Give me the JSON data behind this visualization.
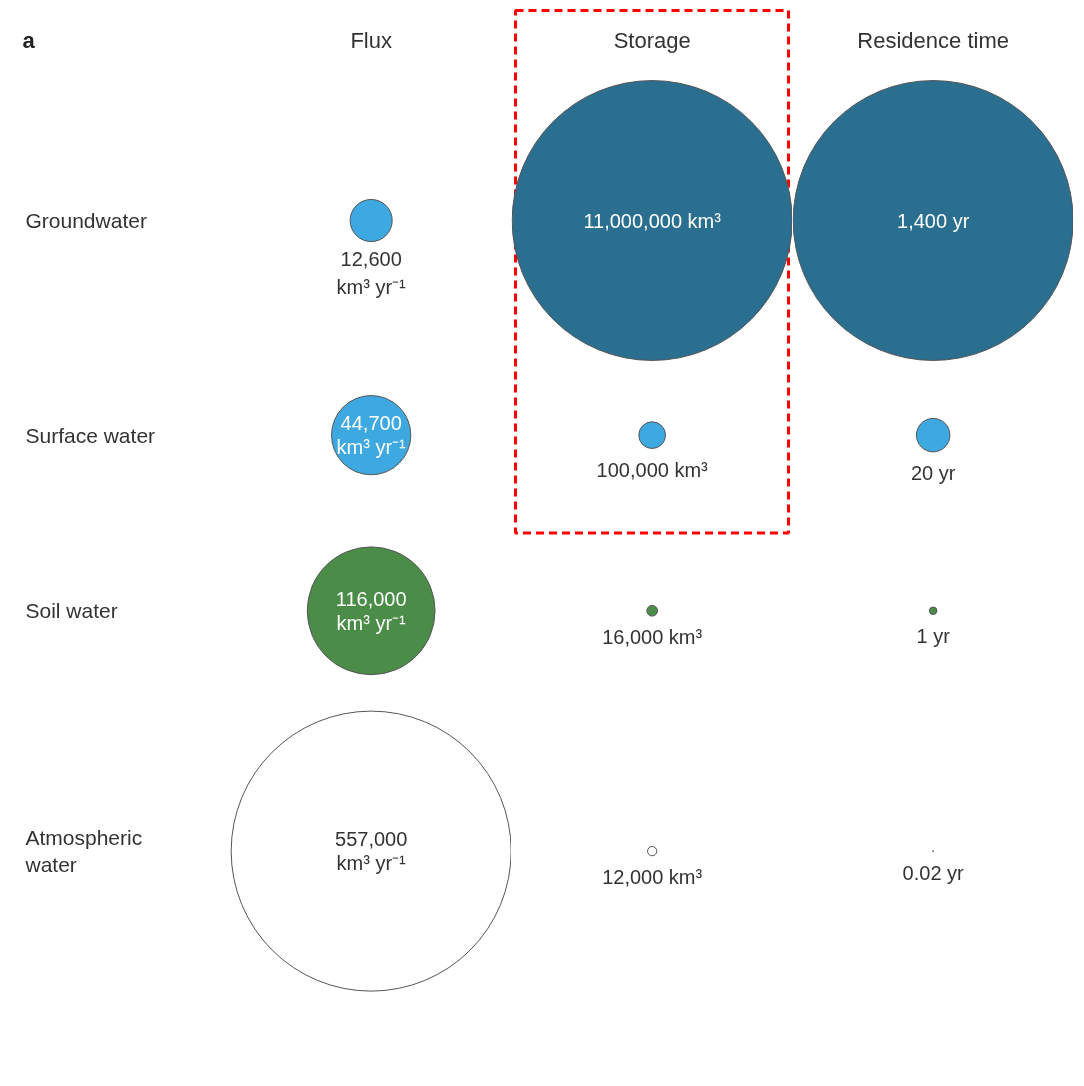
{
  "chart_data": [
    {
      "type": "other",
      "title": "Flux",
      "annotations": [
        "a"
      ],
      "categories": [
        "Groundwater",
        "Surface water",
        "Soil water",
        "Atmospheric\nwater"
      ],
      "values": [
        12600,
        44700,
        116000,
        557000
      ],
      "value_labels": [
        "12,600\nkm³ yr⁻¹",
        "44,700\nkm³ yr⁻¹",
        "116,000\nkm³ yr⁻¹",
        "557,000\nkm³ yr⁻¹"
      ],
      "colors": [
        "#3ea8e0",
        "#3ea8e0",
        "#4a8c48",
        "#ffffff"
      ]
    },
    {
      "type": "other",
      "title": "Storage",
      "categories": [
        null,
        null,
        null,
        null
      ],
      "values": [
        11000000,
        100000,
        16000,
        12000
      ],
      "value_labels": [
        "11,000,000 km³",
        "100,000 km³",
        "16,000 km³",
        "12,000 km³"
      ],
      "colors": [
        "#2a6f8f",
        "#3ea8e0",
        "#4a8c48",
        "#ffffff"
      ]
    },
    {
      "type": "other",
      "title": "Residence time",
      "categories": [
        null,
        null,
        null,
        null
      ],
      "values": [
        1400,
        20,
        1,
        0.02
      ],
      "value_labels": [
        "1,400 yr",
        "20 yr",
        "1 yr",
        "0.02 yr"
      ],
      "colors": [
        "#2a6f8f",
        "#3ea8e0",
        "#4a8c48",
        "#ffffff"
      ]
    }
  ]
}
